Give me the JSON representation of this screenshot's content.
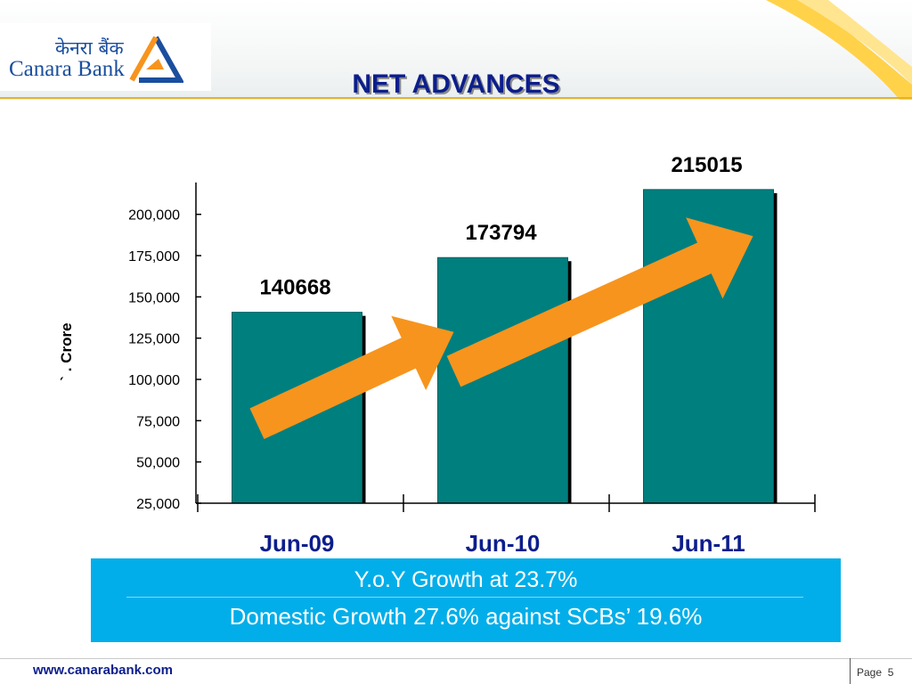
{
  "header": {
    "logo_hindi": "केनरा बैंक",
    "logo_english": "Canara Bank",
    "title": "NET ADVANCES",
    "accent_orange": "#f7941d",
    "accent_blue": "#1a4e9e"
  },
  "chart_data": {
    "type": "bar",
    "title": "",
    "categories": [
      "Jun-09",
      "Jun-10",
      "Jun-11"
    ],
    "values": [
      140668,
      173794,
      215015
    ],
    "data_labels": [
      "140668",
      "173794",
      "215015"
    ],
    "ylabel": "` . Crore",
    "ylim": [
      25000,
      215015
    ],
    "yticks": [
      25000,
      50000,
      75000,
      100000,
      125000,
      150000,
      175000,
      200000
    ],
    "ytick_labels": [
      "25,000",
      "50,000",
      "75,000",
      "100,000",
      "125,000",
      "150,000",
      "175,000",
      "200,000"
    ],
    "bar_color": "#007f7f",
    "grid": false,
    "legend": "none"
  },
  "growth": {
    "line1": "Y.o.Y Growth at 23.7%",
    "line2": "Domestic Growth 27.6% against SCBs’ 19.6%",
    "box_color": "#02aee9"
  },
  "footer": {
    "url": "www.canarabank.com",
    "page_label": "Page",
    "page_number": "5"
  }
}
